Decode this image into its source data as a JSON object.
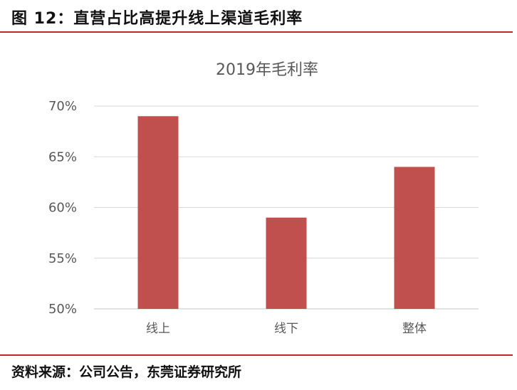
{
  "figure_title": "图 12：直营占比高提升线上渠道毛利率",
  "source_note": "资料来源：公司公告，东莞证券研究所",
  "colors": {
    "bar": "#c0504d",
    "grid": "#d9d9d9",
    "rule": "#c0272d",
    "text": "#595959"
  },
  "chart_data": {
    "type": "bar",
    "title": "2019年毛利率",
    "categories": [
      "线上",
      "线下",
      "整体"
    ],
    "values": [
      69,
      59,
      64
    ],
    "yticks": [
      "50%",
      "55%",
      "60%",
      "65%",
      "70%"
    ],
    "ylim": [
      50,
      70
    ],
    "grid": true,
    "legend": "none"
  }
}
